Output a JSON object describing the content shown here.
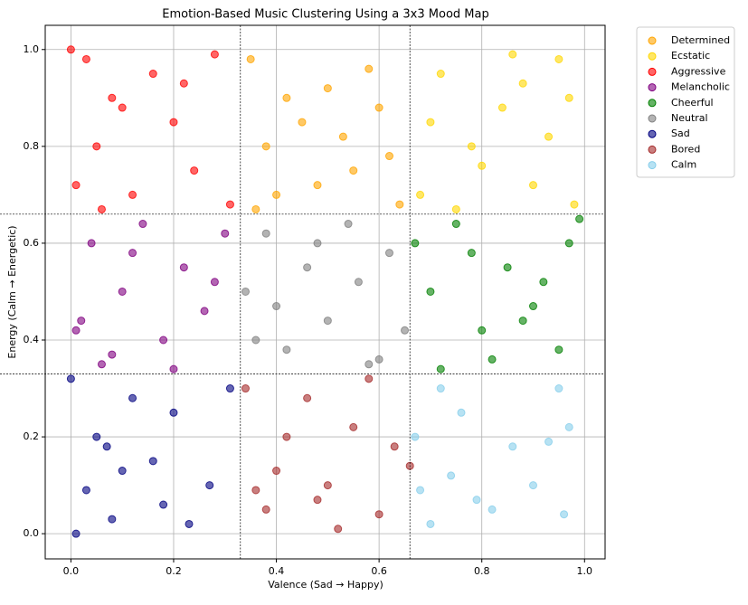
{
  "chart_data": {
    "type": "scatter",
    "title": "Emotion-Based Music Clustering Using a 3x3 Mood Map",
    "x_label": "Valence (Sad → Happy)",
    "y_label": "Energy (Calm → Energetic)",
    "xlim": [
      -0.05,
      1.04
    ],
    "ylim": [
      -0.052,
      1.05
    ],
    "xticks": [
      {
        "value": 0,
        "label": "0.0"
      },
      0.2,
      0.4,
      0.6,
      0.8,
      {
        "value": 1,
        "label": "1.0"
      }
    ],
    "yticks": [
      {
        "value": 0,
        "label": "0.0"
      },
      0.2,
      0.4,
      0.6,
      0.8,
      {
        "value": 1,
        "label": "1.0"
      }
    ],
    "grid": true,
    "legend": "outside-right",
    "vlines": [
      0.33,
      0.66
    ],
    "hlines": [
      0.33,
      0.66
    ],
    "series": [
      {
        "name": "Determined",
        "color": "#ffa500",
        "x": [
          0.35,
          0.4,
          0.45,
          0.5,
          0.55,
          0.6,
          0.64,
          0.38,
          0.48,
          0.58,
          0.42,
          0.53,
          0.62,
          0.36
        ],
        "values": [
          0.98,
          0.7,
          0.85,
          0.92,
          0.75,
          0.88,
          0.68,
          0.8,
          0.72,
          0.96,
          0.9,
          0.82,
          0.78,
          0.67
        ]
      },
      {
        "name": "Ecstatic",
        "color": "#ffd700",
        "x": [
          0.68,
          0.72,
          0.78,
          0.84,
          0.9,
          0.95,
          0.98,
          0.7,
          0.8,
          0.88,
          0.93,
          0.75,
          0.86,
          0.97
        ],
        "values": [
          0.7,
          0.95,
          0.8,
          0.88,
          0.72,
          0.98,
          0.68,
          0.85,
          0.76,
          0.93,
          0.82,
          0.67,
          0.99,
          0.9
        ]
      },
      {
        "name": "Aggressive",
        "color": "#ff0000",
        "x": [
          0,
          0.01,
          0.03,
          0.05,
          0.08,
          0.12,
          0.16,
          0.2,
          0.24,
          0.28,
          0.31,
          0.1,
          0.22,
          0.06
        ],
        "values": [
          1.0,
          0.72,
          0.98,
          0.8,
          0.9,
          0.7,
          0.95,
          0.85,
          0.75,
          0.99,
          0.68,
          0.88,
          0.93,
          0.67
        ]
      },
      {
        "name": "Melancholic",
        "color": "#800080",
        "x": [
          0.01,
          0.02,
          0.04,
          0.06,
          0.1,
          0.14,
          0.18,
          0.22,
          0.26,
          0.3,
          0.08,
          0.2,
          0.28,
          0.12
        ],
        "values": [
          0.42,
          0.44,
          0.6,
          0.35,
          0.5,
          0.64,
          0.4,
          0.55,
          0.46,
          0.62,
          0.37,
          0.34,
          0.52,
          0.58
        ]
      },
      {
        "name": "Cheerful",
        "color": "#008000",
        "x": [
          0.67,
          0.7,
          0.75,
          0.8,
          0.85,
          0.9,
          0.95,
          0.97,
          0.99,
          0.72,
          0.82,
          0.92,
          0.78,
          0.88
        ],
        "values": [
          0.6,
          0.5,
          0.64,
          0.42,
          0.55,
          0.47,
          0.38,
          0.6,
          0.65,
          0.34,
          0.36,
          0.52,
          0.58,
          0.44
        ]
      },
      {
        "name": "Neutral",
        "color": "#808080",
        "x": [
          0.34,
          0.38,
          0.42,
          0.46,
          0.5,
          0.54,
          0.58,
          0.62,
          0.65,
          0.4,
          0.48,
          0.56,
          0.36,
          0.6
        ],
        "values": [
          0.5,
          0.62,
          0.38,
          0.55,
          0.44,
          0.64,
          0.35,
          0.58,
          0.42,
          0.47,
          0.6,
          0.52,
          0.4,
          0.36
        ]
      },
      {
        "name": "Sad",
        "color": "#000080",
        "x": [
          0,
          0.01,
          0.03,
          0.05,
          0.08,
          0.12,
          0.16,
          0.2,
          0.23,
          0.27,
          0.31,
          0.07,
          0.18,
          0.1
        ],
        "values": [
          0.32,
          0.0,
          0.09,
          0.2,
          0.03,
          0.28,
          0.15,
          0.25,
          0.02,
          0.1,
          0.3,
          0.18,
          0.06,
          0.13
        ]
      },
      {
        "name": "Bored",
        "color": "#a52a2a",
        "x": [
          0.34,
          0.38,
          0.42,
          0.46,
          0.5,
          0.52,
          0.55,
          0.6,
          0.63,
          0.66,
          0.4,
          0.48,
          0.58,
          0.36
        ],
        "values": [
          0.3,
          0.05,
          0.2,
          0.28,
          0.1,
          0.01,
          0.22,
          0.04,
          0.18,
          0.14,
          0.13,
          0.07,
          0.32,
          0.09
        ]
      },
      {
        "name": "Calm",
        "color": "#87ceeb",
        "x": [
          0.67,
          0.68,
          0.7,
          0.72,
          0.76,
          0.79,
          0.82,
          0.86,
          0.9,
          0.95,
          0.96,
          0.97,
          0.74,
          0.93
        ],
        "values": [
          0.2,
          0.09,
          0.02,
          0.3,
          0.25,
          0.07,
          0.05,
          0.18,
          0.1,
          0.3,
          0.04,
          0.22,
          0.12,
          0.19
        ]
      }
    ]
  }
}
